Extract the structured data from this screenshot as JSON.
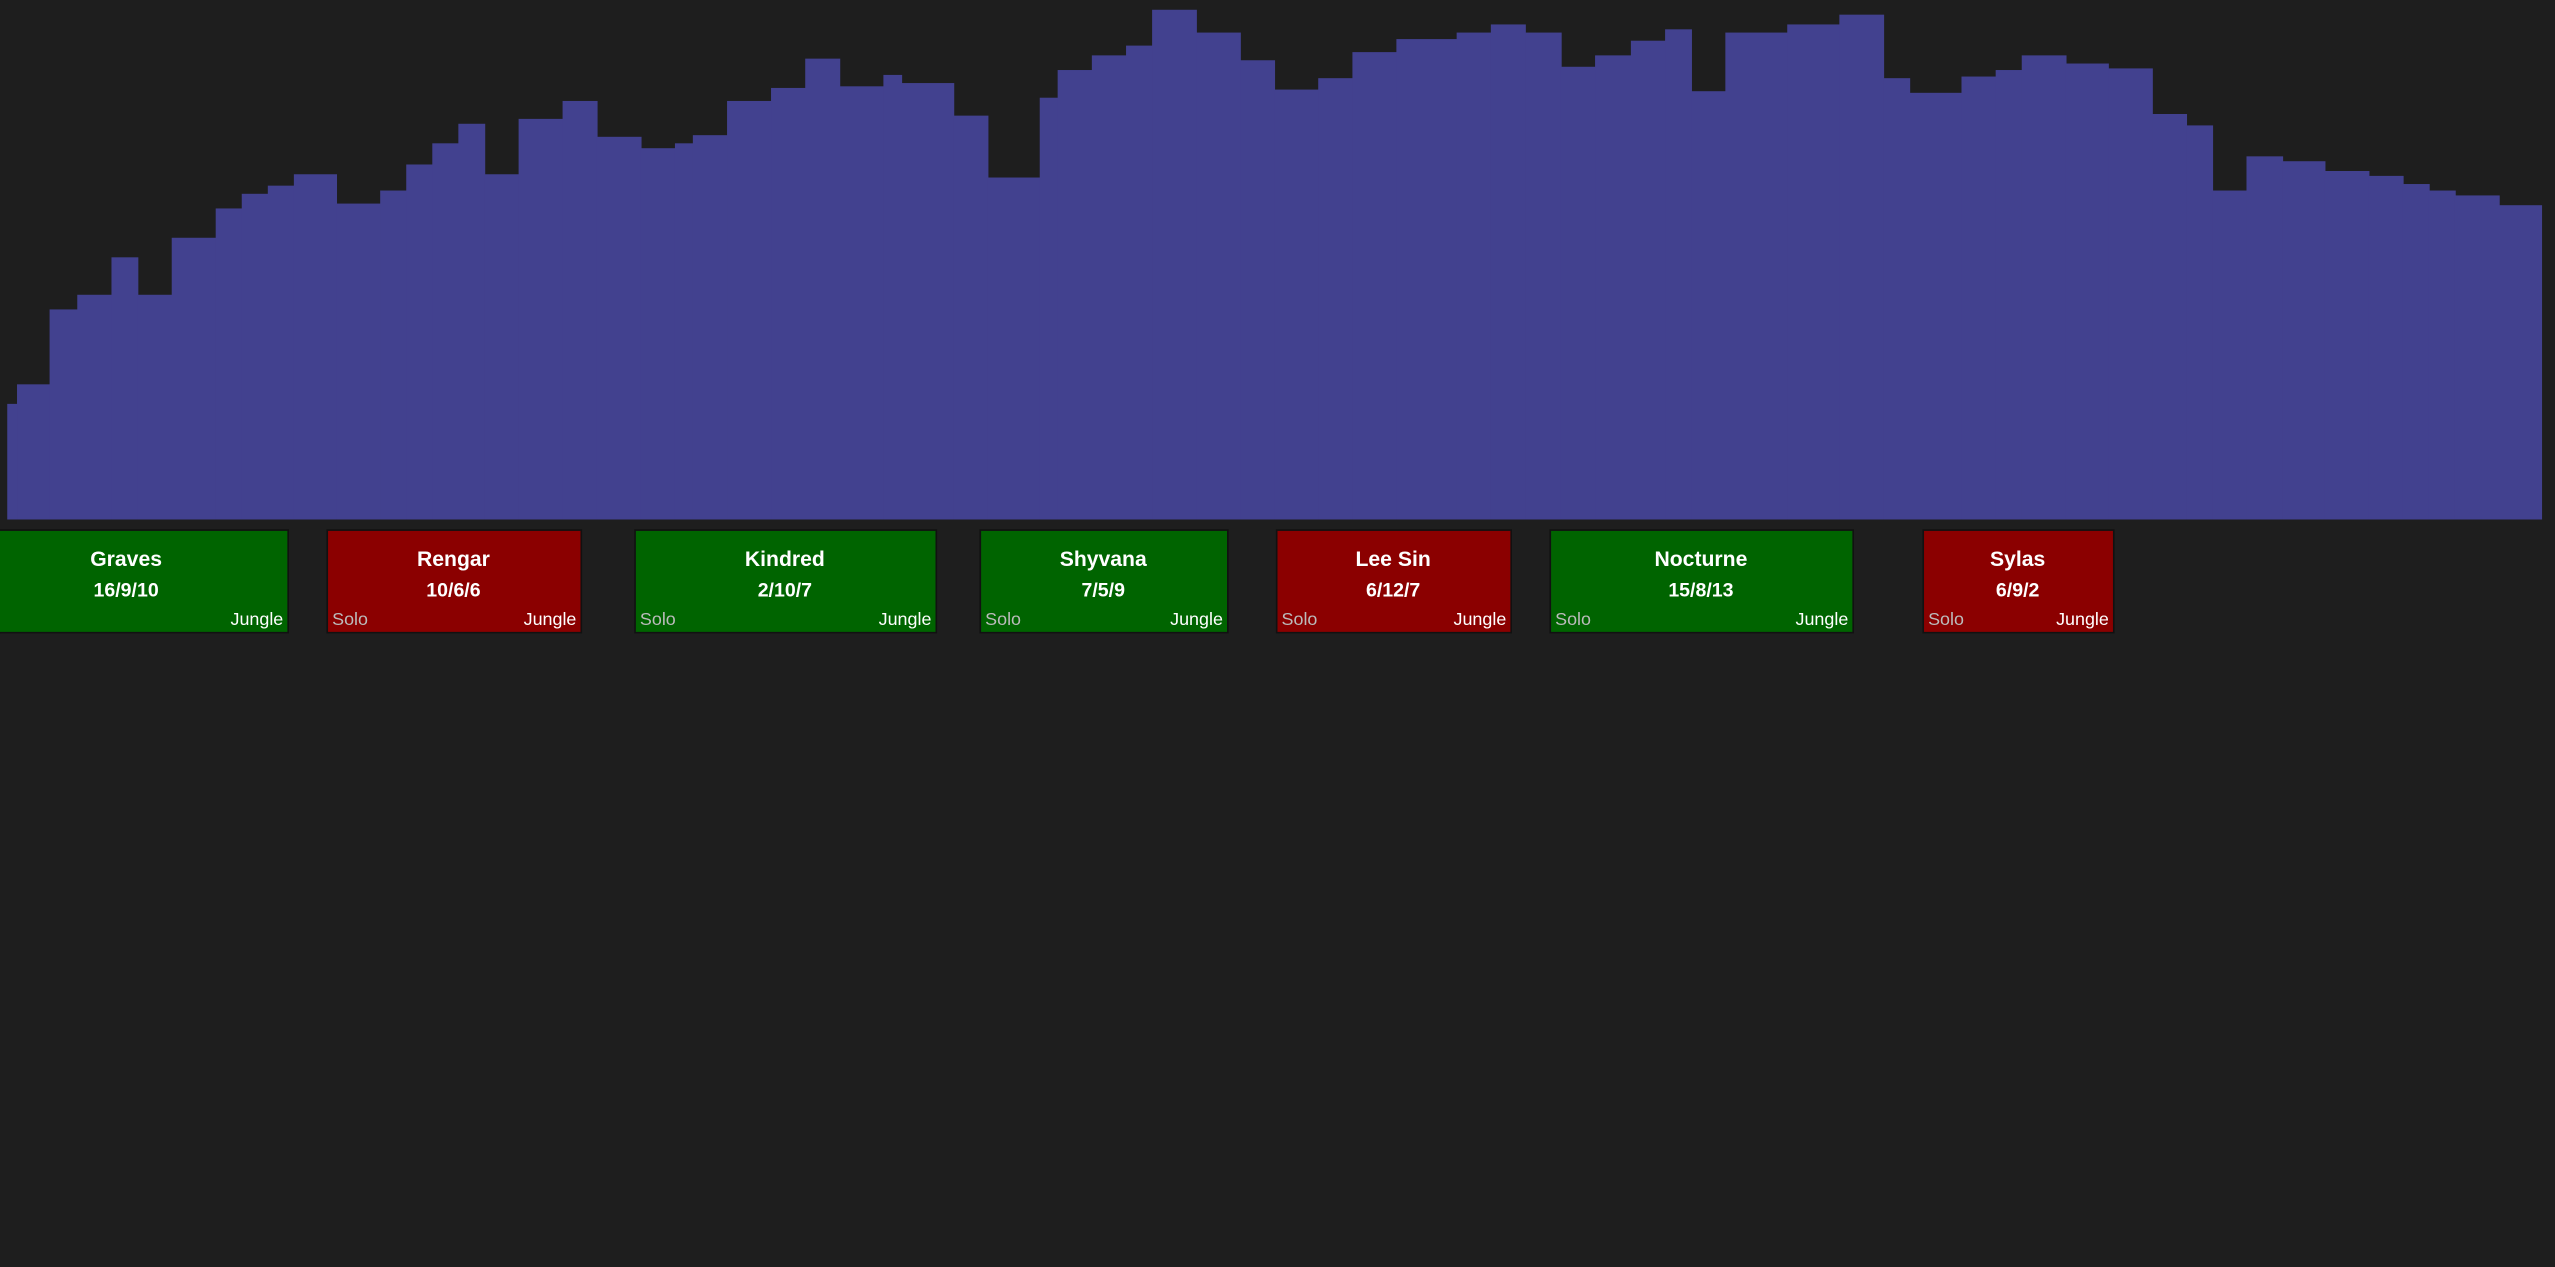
{
  "chart_data": {
    "type": "histogram",
    "color": "#42418f",
    "xlim": [
      0,
      1568
    ],
    "ylim": [
      0,
      319
    ],
    "bins": [
      4,
      10,
      30,
      47,
      68,
      84,
      105,
      132,
      148,
      164,
      180,
      206,
      233,
      249,
      265,
      281,
      297,
      318,
      345,
      366,
      393,
      414,
      425,
      446,
      473,
      494,
      515,
      542,
      553,
      585,
      606,
      638,
      649,
      670,
      691,
      707,
      734,
      761,
      782,
      809,
      830,
      857,
      894,
      915,
      936,
      958,
      979,
      1001,
      1022,
      1038,
      1059,
      1097,
      1129,
      1156,
      1172,
      1204,
      1225,
      1241,
      1268,
      1294,
      1321,
      1342,
      1358,
      1379,
      1401,
      1427,
      1454,
      1475,
      1491,
      1507,
      1534,
      1560
    ],
    "values": [
      71,
      83,
      129,
      138,
      161,
      138,
      173,
      191,
      200,
      205,
      212,
      194,
      202,
      218,
      231,
      243,
      212,
      246,
      257,
      235,
      228,
      231,
      236,
      257,
      265,
      283,
      266,
      273,
      268,
      248,
      210,
      259,
      276,
      285,
      291,
      313,
      299,
      282,
      264,
      271,
      287,
      295,
      299,
      304,
      299,
      278,
      285,
      294,
      301,
      263,
      299,
      304,
      310,
      271,
      262,
      272,
      276,
      285,
      280,
      277,
      249,
      242,
      202,
      223,
      220,
      214,
      211,
      206,
      202,
      199,
      193
    ]
  },
  "matches": [
    {
      "champion": "Graves",
      "kda": "16/9/10",
      "queue": "o",
      "role": "Jungle",
      "color": "#006400"
    },
    {
      "champion": "Rengar",
      "kda": "10/6/6",
      "queue": "Solo",
      "role": "Jungle",
      "color": "#8b0000"
    },
    {
      "champion": "Kindred",
      "kda": "2/10/7",
      "queue": "Solo",
      "role": "Jungle",
      "color": "#006400"
    },
    {
      "champion": "Shyvana",
      "kda": "7/5/9",
      "queue": "Solo",
      "role": "Jungle",
      "color": "#006400"
    },
    {
      "champion": "Lee Sin",
      "kda": "6/12/7",
      "queue": "Solo",
      "role": "Jungle",
      "color": "#8b0000"
    },
    {
      "champion": "Nocturne",
      "kda": "15/8/13",
      "queue": "Solo",
      "role": "Jungle",
      "color": "#006400"
    },
    {
      "champion": "Sylas",
      "kda": "6/9/2",
      "queue": "Solo",
      "role": "Jungle",
      "color": "#8b0000"
    }
  ]
}
